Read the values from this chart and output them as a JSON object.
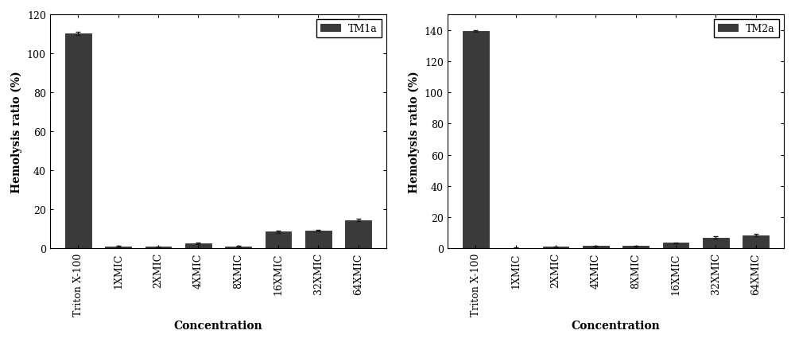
{
  "chart1": {
    "legend_label": "TM1a",
    "categories": [
      "Triton X-100",
      "1XMIC",
      "2XMIC",
      "4XMIC",
      "8XMIC",
      "16XMIC",
      "32XMIC",
      "64XMIC"
    ],
    "values": [
      110.0,
      1.0,
      0.8,
      2.5,
      1.0,
      8.5,
      9.0,
      14.5
    ],
    "errors": [
      0.8,
      0.3,
      0.2,
      0.4,
      0.3,
      0.5,
      0.5,
      0.7
    ],
    "ylabel": "Hemolysis ratio (%)",
    "xlabel": "Concentration",
    "ylim": [
      0,
      120
    ],
    "yticks": [
      0,
      20,
      40,
      60,
      80,
      100,
      120
    ],
    "bar_color": "#3a3a3a",
    "bar_edgecolor": "#1a1a1a",
    "error_color": "#1a1a1a"
  },
  "chart2": {
    "legend_label": "TM2a",
    "categories": [
      "Triton X-100",
      "1XMIC",
      "2XMIC",
      "4XMIC",
      "8XMIC",
      "16XMIC",
      "32XMIC",
      "64XMIC"
    ],
    "values": [
      139.0,
      0.3,
      1.0,
      1.5,
      1.5,
      3.5,
      7.0,
      8.5
    ],
    "errors": [
      0.5,
      0.15,
      0.25,
      0.35,
      0.35,
      0.45,
      0.55,
      0.65
    ],
    "ylabel": "Hemolysis ratio (%)",
    "xlabel": "Concentration",
    "ylim": [
      0,
      150
    ],
    "yticks": [
      0,
      20,
      40,
      60,
      80,
      100,
      120,
      140
    ],
    "bar_color": "#3a3a3a",
    "bar_edgecolor": "#1a1a1a",
    "error_color": "#1a1a1a"
  },
  "fig_bg": "#ffffff",
  "ax_bg": "#ffffff",
  "bar_width": 0.65,
  "tick_fontsize": 9,
  "label_fontsize": 10,
  "legend_fontsize": 9
}
